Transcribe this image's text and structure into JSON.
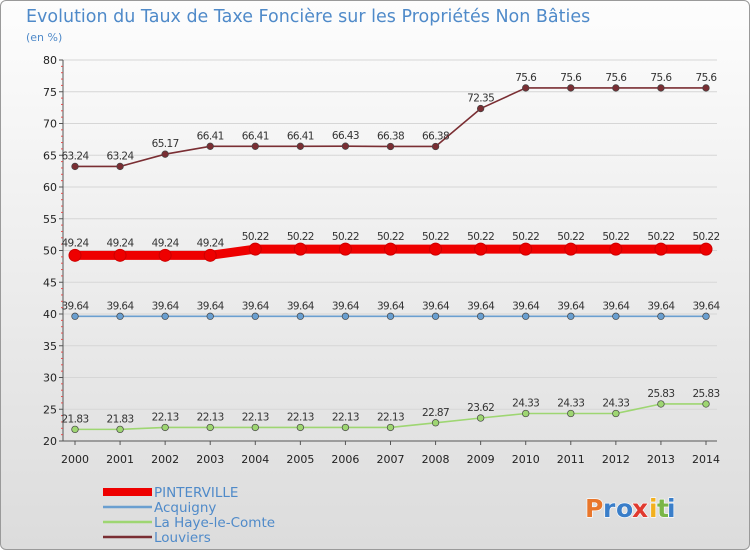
{
  "chart_data": {
    "type": "line",
    "title": "Evolution du Taux de Taxe Foncière sur les Propriétés Non Bâties",
    "ylabel": "(en %)",
    "xlabel": "",
    "ylim": [
      20,
      80
    ],
    "yticks": [
      20,
      25,
      30,
      35,
      40,
      45,
      50,
      55,
      60,
      65,
      70,
      75,
      80
    ],
    "categories": [
      "2000",
      "2001",
      "2002",
      "2003",
      "2004",
      "2005",
      "2006",
      "2007",
      "2008",
      "2009",
      "2010",
      "2011",
      "2012",
      "2013",
      "2014"
    ],
    "series": [
      {
        "name": "PINTERVILLE",
        "color": "#ee0000",
        "values": [
          49.24,
          49.24,
          49.24,
          49.24,
          50.22,
          50.22,
          50.22,
          50.22,
          50.22,
          50.22,
          50.22,
          50.22,
          50.22,
          50.22,
          50.22
        ],
        "labels": [
          "49.24",
          "49.24",
          "49.24",
          "49.24",
          "50.22",
          "50.22",
          "50.22",
          "50.22",
          "50.22",
          "50.22",
          "50.22",
          "50.22",
          "50.22",
          "50.22",
          "50.22"
        ]
      },
      {
        "name": "Acquigny",
        "color": "#6a9fd0",
        "values": [
          39.64,
          39.64,
          39.64,
          39.64,
          39.64,
          39.64,
          39.64,
          39.64,
          39.64,
          39.64,
          39.64,
          39.64,
          39.64,
          39.64,
          39.64
        ],
        "labels": [
          "39.64",
          "39.64",
          "39.64",
          "39.64",
          "39.64",
          "39.64",
          "39.64",
          "39.64",
          "39.64",
          "39.64",
          "39.64",
          "39.64",
          "39.64",
          "39.64",
          "39.64"
        ]
      },
      {
        "name": "La Haye-le-Comte",
        "color": "#9ed672",
        "values": [
          21.83,
          21.83,
          22.13,
          22.13,
          22.13,
          22.13,
          22.13,
          22.13,
          22.87,
          23.62,
          24.33,
          24.33,
          24.33,
          25.83,
          25.83
        ],
        "labels": [
          "21.83",
          "21.83",
          "22.13",
          "22.13",
          "22.13",
          "22.13",
          "22.13",
          "22.13",
          "22.87",
          "23.62",
          "24.33",
          "24.33",
          "24.33",
          "25.83",
          "25.83"
        ]
      },
      {
        "name": "Louviers",
        "color": "#7a2e33",
        "values": [
          63.24,
          63.24,
          65.17,
          66.41,
          66.41,
          66.41,
          66.43,
          66.38,
          66.38,
          72.35,
          75.6,
          75.6,
          75.6,
          75.6,
          75.6
        ],
        "labels": [
          "63.24",
          "63.24",
          "65.17",
          "66.41",
          "66.41",
          "66.41",
          "66.43",
          "66.38",
          "66.38",
          "72.35",
          "75.6",
          "75.6",
          "75.6",
          "75.6",
          "75.6"
        ]
      }
    ]
  },
  "logo": {
    "text": "Proxiti",
    "letters": [
      "P",
      "r",
      "o",
      "x",
      "i",
      "t",
      "i"
    ],
    "letter_colors": [
      "#e8762b",
      "#3a7ec9",
      "#3a7ec9",
      "#e03a2f",
      "#f2b01e",
      "#7ab648",
      "#3a7ec9"
    ]
  }
}
